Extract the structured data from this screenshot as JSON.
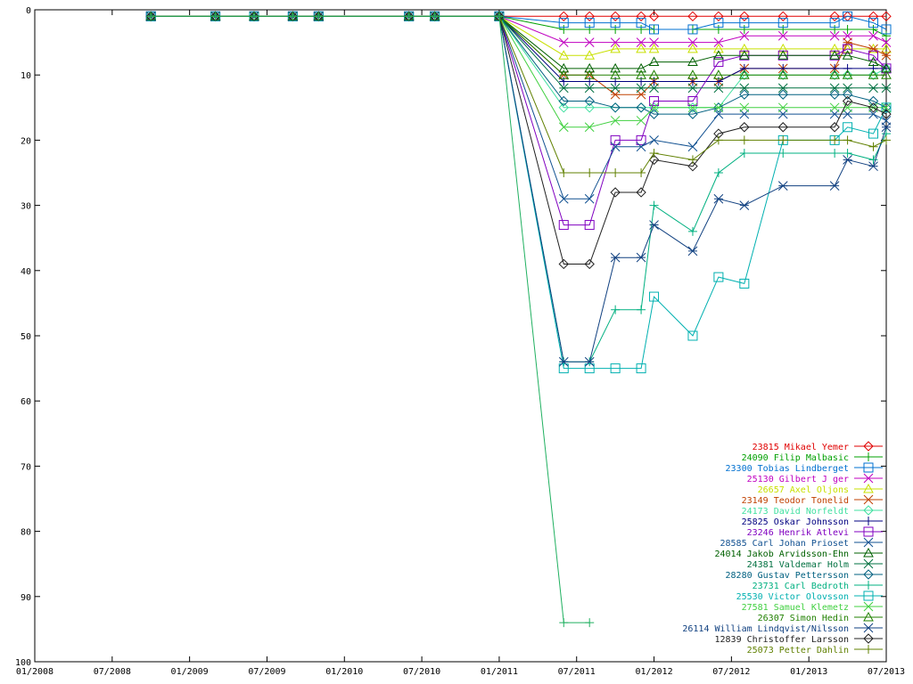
{
  "chart_data": {
    "type": "line",
    "title": "",
    "xlabel": "",
    "ylabel": "",
    "ylim": [
      0,
      100
    ],
    "y_reversed": true,
    "y_ticks": [
      0,
      10,
      20,
      30,
      40,
      50,
      60,
      70,
      80,
      90,
      100
    ],
    "x_ticks": [
      "01/2008",
      "07/2008",
      "01/2009",
      "07/2009",
      "01/2010",
      "07/2010",
      "01/2011",
      "07/2011",
      "01/2012",
      "07/2012",
      "01/2013",
      "07/2013"
    ],
    "grid": false,
    "legend_position": "bottom-right",
    "x": [
      "10/2008",
      "03/2009",
      "06/2009",
      "09/2009",
      "11/2009",
      "06/2010",
      "08/2010",
      "01/2011",
      "06/2011",
      "08/2011",
      "10/2011",
      "12/2011",
      "01/2012",
      "04/2012",
      "06/2012",
      "08/2012",
      "11/2012",
      "03/2013",
      "04/2013",
      "06/2013",
      "07/2013"
    ],
    "series": [
      {
        "name": "23815 Mikael Yemer",
        "color": "#e00000",
        "marker": "diamond",
        "values": [
          1,
          1,
          1,
          1,
          1,
          1,
          1,
          1,
          1,
          1,
          1,
          1,
          1,
          1,
          1,
          1,
          1,
          1,
          1,
          1,
          1
        ]
      },
      {
        "name": "24090 Filip Malbasic",
        "color": "#00a000",
        "marker": "plus",
        "values": [
          1,
          1,
          1,
          1,
          1,
          1,
          1,
          1,
          3,
          3,
          3,
          3,
          3,
          3,
          3,
          3,
          3,
          3,
          3,
          3,
          4
        ]
      },
      {
        "name": "23300 Tobias Lindberget",
        "color": "#0070d0",
        "marker": "square",
        "values": [
          1,
          1,
          1,
          1,
          1,
          1,
          1,
          1,
          2,
          2,
          2,
          2,
          3,
          3,
          2,
          2,
          2,
          2,
          1,
          2,
          3
        ]
      },
      {
        "name": "25130 Gilbert J ger",
        "color": "#c000c0",
        "marker": "x",
        "values": [
          1,
          1,
          1,
          1,
          1,
          1,
          1,
          1,
          5,
          5,
          5,
          5,
          5,
          5,
          5,
          4,
          4,
          4,
          4,
          4,
          5
        ]
      },
      {
        "name": "26657 Axel Oljons",
        "color": "#c8e000",
        "marker": "triangle",
        "values": [
          1,
          1,
          1,
          1,
          1,
          1,
          1,
          1,
          7,
          7,
          6,
          6,
          6,
          6,
          6,
          6,
          6,
          6,
          6,
          6,
          6
        ]
      },
      {
        "name": "23149 Teodor Tonelid",
        "color": "#c04000",
        "marker": "star",
        "values": [
          1,
          1,
          1,
          1,
          1,
          1,
          1,
          1,
          10,
          10,
          13,
          13,
          11,
          11,
          11,
          9,
          9,
          9,
          5,
          6,
          7
        ]
      },
      {
        "name": "24173 David Norfeldt",
        "color": "#40e0a0",
        "marker": "diamond",
        "values": [
          1,
          1,
          1,
          1,
          1,
          1,
          1,
          1,
          15,
          15,
          15,
          15,
          15,
          15,
          15,
          10,
          10,
          10,
          10,
          10,
          9
        ]
      },
      {
        "name": "25825 Oskar Johnsson",
        "color": "#000080",
        "marker": "plus",
        "values": [
          1,
          1,
          1,
          1,
          1,
          1,
          1,
          1,
          11,
          11,
          11,
          11,
          11,
          11,
          11,
          9,
          9,
          9,
          9,
          9,
          9
        ]
      },
      {
        "name": "23246 Henrik Atlevi",
        "color": "#8000c0",
        "marker": "square",
        "values": [
          1,
          1,
          1,
          1,
          1,
          1,
          1,
          1,
          33,
          33,
          20,
          20,
          14,
          14,
          8,
          7,
          7,
          7,
          6,
          7,
          9
        ]
      },
      {
        "name": "28585 Carl Johan Prioset",
        "color": "#105090",
        "marker": "x",
        "values": [
          1,
          1,
          1,
          1,
          1,
          1,
          1,
          1,
          29,
          29,
          21,
          21,
          20,
          21,
          16,
          16,
          16,
          16,
          16,
          16,
          17
        ]
      },
      {
        "name": "24014 Jakob Arvidsson-Ehn",
        "color": "#006000",
        "marker": "triangle",
        "values": [
          1,
          1,
          1,
          1,
          1,
          1,
          1,
          1,
          9,
          9,
          9,
          9,
          8,
          8,
          7,
          7,
          7,
          7,
          7,
          8,
          9
        ]
      },
      {
        "name": "24381 Valdemar Holm",
        "color": "#007040",
        "marker": "star",
        "values": [
          1,
          1,
          1,
          1,
          1,
          1,
          1,
          1,
          12,
          12,
          12,
          12,
          12,
          12,
          12,
          12,
          12,
          12,
          12,
          12,
          12
        ]
      },
      {
        "name": "28280 Gustav Pettersson",
        "color": "#006080",
        "marker": "diamond",
        "values": [
          1,
          1,
          1,
          1,
          1,
          1,
          1,
          1,
          14,
          14,
          15,
          15,
          16,
          16,
          15,
          13,
          13,
          13,
          13,
          14,
          15
        ]
      },
      {
        "name": "23731 Carl Bedroth",
        "color": "#00b080",
        "marker": "plus",
        "values": [
          1,
          1,
          1,
          1,
          1,
          1,
          1,
          1,
          54,
          54,
          46,
          46,
          30,
          34,
          25,
          22,
          22,
          22,
          22,
          23,
          19
        ]
      },
      {
        "name": "25530 Victor Olovsson",
        "color": "#00b0b0",
        "marker": "square",
        "values": [
          1,
          1,
          1,
          1,
          1,
          1,
          1,
          1,
          55,
          55,
          55,
          55,
          44,
          50,
          41,
          42,
          20,
          20,
          18,
          19,
          15
        ]
      },
      {
        "name": "27581 Samuel Klemetz",
        "color": "#40d040",
        "marker": "x",
        "values": [
          1,
          1,
          1,
          1,
          1,
          1,
          1,
          1,
          18,
          18,
          17,
          17,
          15,
          15,
          15,
          15,
          15,
          15,
          15,
          15,
          15
        ]
      },
      {
        "name": "26307 Simon Hedin",
        "color": "#208000",
        "marker": "triangle",
        "values": [
          1,
          1,
          1,
          1,
          1,
          1,
          1,
          1,
          10,
          10,
          10,
          10,
          10,
          10,
          10,
          10,
          10,
          10,
          10,
          10,
          10
        ]
      },
      {
        "name": "26114 William Lindqvist/Nilsson",
        "color": "#104080",
        "marker": "star",
        "values": [
          1,
          1,
          1,
          1,
          1,
          1,
          1,
          1,
          54,
          54,
          38,
          38,
          33,
          37,
          29,
          30,
          27,
          27,
          23,
          24,
          18
        ]
      },
      {
        "name": "12839 Christoffer Larsson",
        "color": "#202020",
        "marker": "diamond",
        "values": [
          1,
          1,
          1,
          1,
          1,
          1,
          1,
          1,
          39,
          39,
          28,
          28,
          23,
          24,
          19,
          18,
          18,
          18,
          14,
          15,
          16
        ]
      },
      {
        "name": "25073 Petter Dahlin",
        "color": "#608000",
        "marker": "plus",
        "values": [
          1,
          1,
          1,
          1,
          1,
          1,
          1,
          1,
          25,
          25,
          25,
          25,
          22,
          23,
          20,
          20,
          20,
          20,
          20,
          21,
          20
        ]
      },
      {
        "name": "",
        "color": "#20b060",
        "marker": "plus",
        "values": [
          1,
          1,
          1,
          1,
          1,
          1,
          1,
          1,
          94,
          94,
          null,
          null,
          null,
          null,
          null,
          null,
          null,
          null,
          null,
          null,
          null
        ]
      }
    ]
  }
}
